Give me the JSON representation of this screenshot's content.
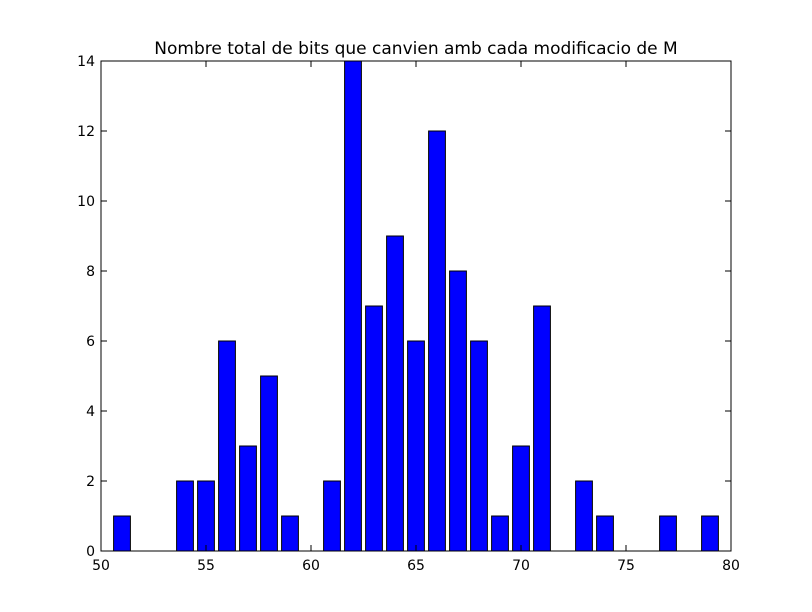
{
  "chart_data": {
    "type": "bar",
    "title": "Nombre total de bits que canvien amb cada modificacio de M",
    "xlabel": "",
    "ylabel": "",
    "xlim": [
      50,
      80
    ],
    "ylim": [
      0,
      14
    ],
    "xticks": [
      50,
      55,
      60,
      65,
      70,
      75,
      80
    ],
    "yticks": [
      0,
      2,
      4,
      6,
      8,
      10,
      12,
      14
    ],
    "bar_width": 0.8,
    "bar_color": "#0000ff",
    "bar_edge_color": "#000000",
    "grid": false,
    "legend": "none",
    "x": [
      51,
      52,
      53,
      54,
      55,
      56,
      57,
      58,
      59,
      60,
      61,
      62,
      63,
      64,
      65,
      66,
      67,
      68,
      69,
      70,
      71,
      72,
      73,
      74,
      75,
      76,
      77,
      78,
      79
    ],
    "values": [
      1,
      0,
      0,
      2,
      2,
      6,
      3,
      5,
      1,
      0,
      2,
      14,
      7,
      9,
      6,
      12,
      8,
      6,
      1,
      3,
      7,
      0,
      2,
      1,
      0,
      0,
      1,
      0,
      1
    ]
  }
}
